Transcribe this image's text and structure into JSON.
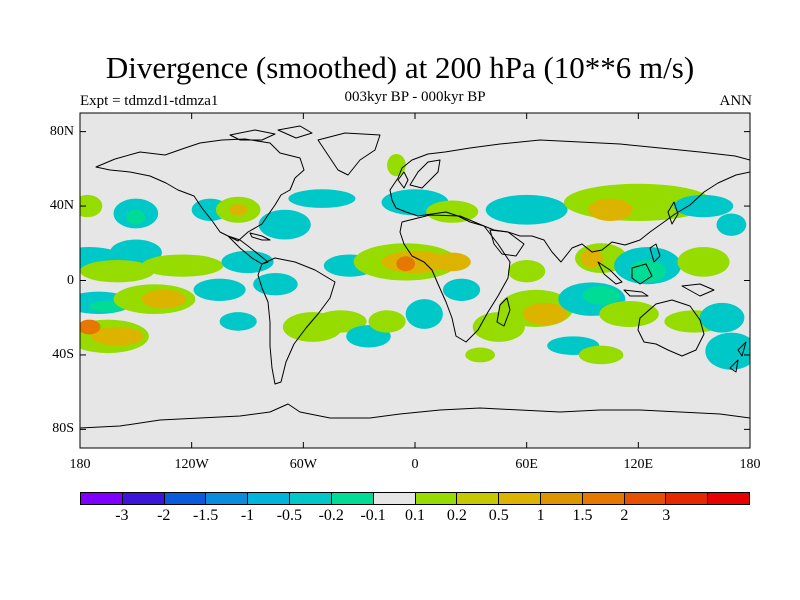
{
  "title": "Divergence (smoothed) at 200 hPa (10**6 m/s)",
  "experiment": "Expt = tdmzd1-tdmza1",
  "period": "003kyr BP - 000kyr BP",
  "season": "ANN",
  "lat_ticks": [
    {
      "label": "80N",
      "lat": 80
    },
    {
      "label": "40N",
      "lat": 40
    },
    {
      "label": "0",
      "lat": 0
    },
    {
      "label": "40S",
      "lat": -40
    },
    {
      "label": "80S",
      "lat": -80
    }
  ],
  "lon_ticks": [
    {
      "label": "180",
      "lon": -180
    },
    {
      "label": "120W",
      "lon": -120
    },
    {
      "label": "60W",
      "lon": -60
    },
    {
      "label": "0",
      "lon": 0
    },
    {
      "label": "60E",
      "lon": 60
    },
    {
      "label": "120E",
      "lon": 120
    },
    {
      "label": "180",
      "lon": 180
    }
  ],
  "colorbar": {
    "colors": [
      "#7f00ff",
      "#3c14dc",
      "#0a5adc",
      "#0a8cdc",
      "#00b4dc",
      "#00c8c8",
      "#00dc96",
      "#e6e6e6",
      "#96dc00",
      "#c8c800",
      "#dcb400",
      "#dc9600",
      "#e67800",
      "#e65000",
      "#e62800",
      "#e60000"
    ],
    "labels": [
      "-3",
      "-2",
      "-1.5",
      "-1",
      "-0.5",
      "-0.2",
      "-0.1",
      "0.1",
      "0.2",
      "0.5",
      "1",
      "1.5",
      "2",
      "3"
    ]
  },
  "map": {
    "lat_range": [
      -90,
      90
    ],
    "lon_range": [
      -180,
      180
    ],
    "background": "#e6e6e6",
    "anomalies": [
      {
        "lon": -176,
        "lat": 40,
        "rx": 8,
        "ry": 6,
        "level": 0.2
      },
      {
        "lon": -150,
        "lat": 36,
        "rx": 12,
        "ry": 8,
        "level": -0.1
      },
      {
        "lon": -150,
        "lat": 34,
        "rx": 5,
        "ry": 4,
        "level": -0.2
      },
      {
        "lon": -110,
        "lat": 38,
        "rx": 10,
        "ry": 6,
        "level": -0.1
      },
      {
        "lon": -95,
        "lat": 38,
        "rx": 12,
        "ry": 7,
        "level": 0.2
      },
      {
        "lon": -95,
        "lat": 38,
        "rx": 5,
        "ry": 3,
        "level": 0.5
      },
      {
        "lon": -70,
        "lat": 30,
        "rx": 14,
        "ry": 8,
        "level": -0.1
      },
      {
        "lon": -50,
        "lat": 44,
        "rx": 18,
        "ry": 5,
        "level": -0.1
      },
      {
        "lon": -10,
        "lat": 62,
        "rx": 5,
        "ry": 6,
        "level": 0.2
      },
      {
        "lon": 0,
        "lat": 42,
        "rx": 18,
        "ry": 7,
        "level": -0.1
      },
      {
        "lon": 20,
        "lat": 37,
        "rx": 14,
        "ry": 6,
        "level": 0.2
      },
      {
        "lon": 60,
        "lat": 38,
        "rx": 22,
        "ry": 8,
        "level": -0.1
      },
      {
        "lon": 120,
        "lat": 42,
        "rx": 40,
        "ry": 10,
        "level": 0.2
      },
      {
        "lon": 105,
        "lat": 38,
        "rx": 12,
        "ry": 6,
        "level": 0.5
      },
      {
        "lon": 155,
        "lat": 40,
        "rx": 16,
        "ry": 6,
        "level": -0.1
      },
      {
        "lon": 170,
        "lat": 30,
        "rx": 8,
        "ry": 6,
        "level": -0.1
      },
      {
        "lon": -175,
        "lat": 12,
        "rx": 18,
        "ry": 6,
        "level": -0.1
      },
      {
        "lon": -150,
        "lat": 15,
        "rx": 14,
        "ry": 7,
        "level": -0.1
      },
      {
        "lon": -125,
        "lat": 8,
        "rx": 22,
        "ry": 6,
        "level": 0.2
      },
      {
        "lon": -160,
        "lat": 5,
        "rx": 20,
        "ry": 6,
        "level": 0.2
      },
      {
        "lon": -90,
        "lat": 10,
        "rx": 14,
        "ry": 6,
        "level": -0.1
      },
      {
        "lon": -75,
        "lat": -2,
        "rx": 12,
        "ry": 6,
        "level": -0.1
      },
      {
        "lon": -35,
        "lat": 8,
        "rx": 14,
        "ry": 6,
        "level": -0.1
      },
      {
        "lon": -5,
        "lat": 10,
        "rx": 28,
        "ry": 10,
        "level": 0.2
      },
      {
        "lon": 0,
        "lat": 10,
        "rx": 18,
        "ry": 6,
        "level": 0.5
      },
      {
        "lon": -5,
        "lat": 9,
        "rx": 5,
        "ry": 4,
        "level": 1
      },
      {
        "lon": 20,
        "lat": 10,
        "rx": 10,
        "ry": 5,
        "level": 0.5
      },
      {
        "lon": 60,
        "lat": 5,
        "rx": 10,
        "ry": 6,
        "level": 0.2
      },
      {
        "lon": 100,
        "lat": 12,
        "rx": 14,
        "ry": 8,
        "level": 0.2
      },
      {
        "lon": 95,
        "lat": 12,
        "rx": 6,
        "ry": 5,
        "level": 0.5
      },
      {
        "lon": 125,
        "lat": 8,
        "rx": 18,
        "ry": 10,
        "level": -0.1
      },
      {
        "lon": 125,
        "lat": 5,
        "rx": 10,
        "ry": 6,
        "level": -0.2
      },
      {
        "lon": 155,
        "lat": 10,
        "rx": 14,
        "ry": 8,
        "level": 0.2
      },
      {
        "lon": -170,
        "lat": -12,
        "rx": 18,
        "ry": 6,
        "level": -0.1
      },
      {
        "lon": -165,
        "lat": -14,
        "rx": 10,
        "ry": 3,
        "level": -0.2
      },
      {
        "lon": -140,
        "lat": -10,
        "rx": 22,
        "ry": 8,
        "level": 0.2
      },
      {
        "lon": -135,
        "lat": -10,
        "rx": 12,
        "ry": 5,
        "level": 0.5
      },
      {
        "lon": -105,
        "lat": -5,
        "rx": 14,
        "ry": 6,
        "level": -0.1
      },
      {
        "lon": -95,
        "lat": -22,
        "rx": 10,
        "ry": 5,
        "level": -0.1
      },
      {
        "lon": -165,
        "lat": -30,
        "rx": 22,
        "ry": 9,
        "level": 0.2
      },
      {
        "lon": -160,
        "lat": -30,
        "rx": 14,
        "ry": 5,
        "level": 0.5
      },
      {
        "lon": -175,
        "lat": -25,
        "rx": 6,
        "ry": 4,
        "level": 1
      },
      {
        "lon": -55,
        "lat": -25,
        "rx": 16,
        "ry": 8,
        "level": 0.2
      },
      {
        "lon": -40,
        "lat": -22,
        "rx": 14,
        "ry": 6,
        "level": 0.2
      },
      {
        "lon": -25,
        "lat": -30,
        "rx": 12,
        "ry": 6,
        "level": -0.1
      },
      {
        "lon": -15,
        "lat": -22,
        "rx": 10,
        "ry": 6,
        "level": 0.2
      },
      {
        "lon": 5,
        "lat": -18,
        "rx": 10,
        "ry": 8,
        "level": -0.1
      },
      {
        "lon": 25,
        "lat": -5,
        "rx": 10,
        "ry": 6,
        "level": -0.1
      },
      {
        "lon": 45,
        "lat": -25,
        "rx": 14,
        "ry": 8,
        "level": 0.2
      },
      {
        "lon": 65,
        "lat": -15,
        "rx": 20,
        "ry": 10,
        "level": 0.2
      },
      {
        "lon": 70,
        "lat": -18,
        "rx": 12,
        "ry": 6,
        "level": 0.5
      },
      {
        "lon": 95,
        "lat": -10,
        "rx": 18,
        "ry": 9,
        "level": -0.1
      },
      {
        "lon": 100,
        "lat": -8,
        "rx": 10,
        "ry": 5,
        "level": -0.2
      },
      {
        "lon": 115,
        "lat": -18,
        "rx": 16,
        "ry": 7,
        "level": 0.2
      },
      {
        "lon": 150,
        "lat": -22,
        "rx": 16,
        "ry": 6,
        "level": 0.2
      },
      {
        "lon": 165,
        "lat": -20,
        "rx": 12,
        "ry": 8,
        "level": -0.1
      },
      {
        "lon": 170,
        "lat": -38,
        "rx": 14,
        "ry": 10,
        "level": -0.1
      },
      {
        "lon": 35,
        "lat": -40,
        "rx": 8,
        "ry": 4,
        "level": 0.2
      },
      {
        "lon": 85,
        "lat": -35,
        "rx": 14,
        "ry": 5,
        "level": -0.1
      },
      {
        "lon": 100,
        "lat": -40,
        "rx": 12,
        "ry": 5,
        "level": 0.2
      }
    ]
  }
}
